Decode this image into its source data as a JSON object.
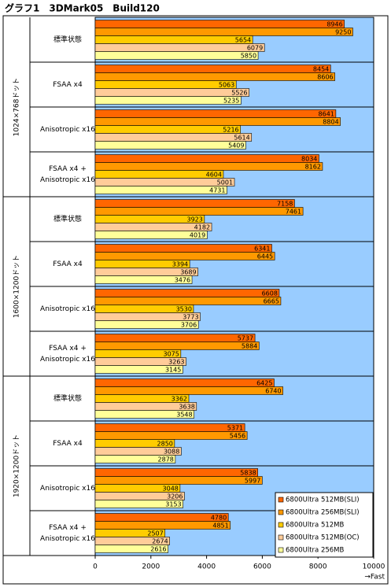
{
  "chart_data": {
    "type": "hbar",
    "title": "グラフ1　3DMark05　Build120",
    "categories": [
      "標準状態",
      "FSAA x4",
      "Anisotropic x16",
      "FSAA x4 +\nAnisotropic x16",
      "標準状態",
      "FSAA x4",
      "Anisotropic x16",
      "FSAA x4 +\nAnisotropic x16",
      "標準状態",
      "FSAA x4",
      "Anisotropic x16",
      "FSAA x4 +\nAnisotropic x16"
    ],
    "category_groups": [
      "1024×768ドット",
      "1600×1200ドット",
      "1920×1200ドット"
    ],
    "series": [
      {
        "name": "6800Ultra 512MB(SLI)",
        "color": "#ff6600",
        "values": [
          8946,
          8454,
          8641,
          8034,
          7158,
          6341,
          6608,
          5737,
          6425,
          5371,
          5838,
          4780
        ]
      },
      {
        "name": "6800Ultra 256MB(SLI)",
        "color": "#ff9900",
        "values": [
          9250,
          8606,
          8804,
          8162,
          7461,
          6445,
          6665,
          5884,
          6740,
          5456,
          5997,
          4851
        ]
      },
      {
        "name": "6800Ultra 512MB",
        "color": "#ffcc00",
        "values": [
          5654,
          5063,
          5216,
          4604,
          3923,
          3394,
          3530,
          3075,
          3362,
          2850,
          3048,
          2507
        ]
      },
      {
        "name": "6800Ultra 512MB(OC)",
        "color": "#ffcc99",
        "values": [
          6079,
          5526,
          5614,
          5001,
          4182,
          3689,
          3773,
          3263,
          3638,
          3088,
          3206,
          2674
        ]
      },
      {
        "name": "6800Ultra 256MB",
        "color": "#ffff99",
        "values": [
          5850,
          5235,
          5409,
          4731,
          4019,
          3476,
          3706,
          3145,
          3548,
          2878,
          3153,
          2616
        ]
      }
    ],
    "xlim": [
      0,
      10000
    ],
    "xticks": [
      0,
      2000,
      4000,
      6000,
      8000,
      10000
    ],
    "x_label": "→Fast",
    "plot_background": "#99ccff",
    "legend": "bottom-right"
  }
}
